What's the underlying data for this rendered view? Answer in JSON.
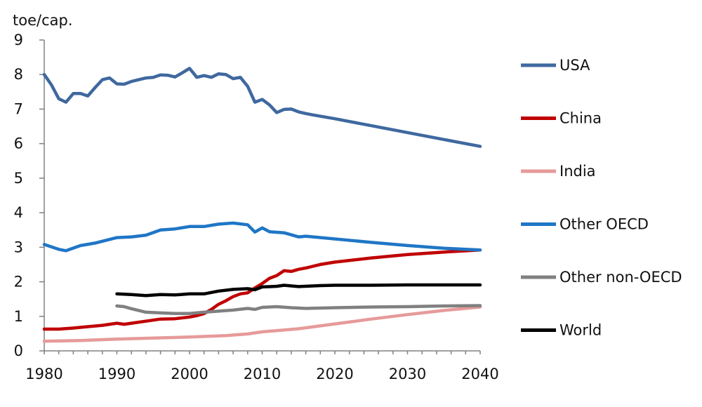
{
  "chart_data": {
    "type": "line",
    "y_unit_label": "toe/cap.",
    "xlim": [
      1980,
      2040
    ],
    "ylim": [
      0,
      9
    ],
    "x_ticks": [
      "1980",
      "1990",
      "2000",
      "2010",
      "2020",
      "2030",
      "2040"
    ],
    "y_ticks": [
      "0",
      "1",
      "2",
      "3",
      "4",
      "5",
      "6",
      "7",
      "8",
      "9"
    ],
    "grid": false,
    "legend_position": "right",
    "series": [
      {
        "name": "USA",
        "color": "#3f689f",
        "points": [
          [
            1980,
            8.0
          ],
          [
            1981,
            7.7
          ],
          [
            1982,
            7.3
          ],
          [
            1983,
            7.2
          ],
          [
            1984,
            7.45
          ],
          [
            1985,
            7.45
          ],
          [
            1986,
            7.38
          ],
          [
            1987,
            7.62
          ],
          [
            1988,
            7.85
          ],
          [
            1989,
            7.9
          ],
          [
            1990,
            7.73
          ],
          [
            1991,
            7.72
          ],
          [
            1992,
            7.8
          ],
          [
            1993,
            7.85
          ],
          [
            1994,
            7.9
          ],
          [
            1995,
            7.92
          ],
          [
            1996,
            7.99
          ],
          [
            1997,
            7.98
          ],
          [
            1998,
            7.93
          ],
          [
            1999,
            8.05
          ],
          [
            2000,
            8.18
          ],
          [
            2001,
            7.92
          ],
          [
            2002,
            7.97
          ],
          [
            2003,
            7.92
          ],
          [
            2004,
            8.02
          ],
          [
            2005,
            8.0
          ],
          [
            2006,
            7.88
          ],
          [
            2007,
            7.92
          ],
          [
            2008,
            7.66
          ],
          [
            2009,
            7.2
          ],
          [
            2010,
            7.28
          ],
          [
            2011,
            7.12
          ],
          [
            2012,
            6.9
          ],
          [
            2013,
            6.99
          ],
          [
            2014,
            7.0
          ],
          [
            2015,
            6.92
          ],
          [
            2016,
            6.87
          ],
          [
            2017,
            6.83
          ],
          [
            2020,
            6.72
          ],
          [
            2025,
            6.52
          ],
          [
            2030,
            6.32
          ],
          [
            2035,
            6.12
          ],
          [
            2040,
            5.92
          ]
        ]
      },
      {
        "name": "China",
        "color": "#c00000",
        "points": [
          [
            1980,
            0.63
          ],
          [
            1982,
            0.63
          ],
          [
            1984,
            0.66
          ],
          [
            1986,
            0.7
          ],
          [
            1988,
            0.74
          ],
          [
            1990,
            0.8
          ],
          [
            1991,
            0.77
          ],
          [
            1992,
            0.8
          ],
          [
            1994,
            0.86
          ],
          [
            1996,
            0.92
          ],
          [
            1998,
            0.93
          ],
          [
            2000,
            0.98
          ],
          [
            2001,
            1.02
          ],
          [
            2002,
            1.08
          ],
          [
            2003,
            1.2
          ],
          [
            2004,
            1.35
          ],
          [
            2005,
            1.45
          ],
          [
            2006,
            1.57
          ],
          [
            2007,
            1.65
          ],
          [
            2008,
            1.68
          ],
          [
            2009,
            1.82
          ],
          [
            2010,
            1.95
          ],
          [
            2011,
            2.1
          ],
          [
            2012,
            2.18
          ],
          [
            2013,
            2.32
          ],
          [
            2014,
            2.3
          ],
          [
            2015,
            2.36
          ],
          [
            2016,
            2.4
          ],
          [
            2018,
            2.5
          ],
          [
            2020,
            2.57
          ],
          [
            2025,
            2.69
          ],
          [
            2030,
            2.79
          ],
          [
            2035,
            2.86
          ],
          [
            2040,
            2.92
          ]
        ]
      },
      {
        "name": "India",
        "color": "#e79a9a",
        "points": [
          [
            1980,
            0.28
          ],
          [
            1985,
            0.3
          ],
          [
            1990,
            0.34
          ],
          [
            1995,
            0.37
          ],
          [
            2000,
            0.4
          ],
          [
            2005,
            0.44
          ],
          [
            2008,
            0.49
          ],
          [
            2010,
            0.55
          ],
          [
            2015,
            0.64
          ],
          [
            2020,
            0.78
          ],
          [
            2025,
            0.92
          ],
          [
            2030,
            1.05
          ],
          [
            2035,
            1.17
          ],
          [
            2040,
            1.27
          ]
        ]
      },
      {
        "name": "Other OECD",
        "color": "#1f76c6",
        "points": [
          [
            1980,
            3.08
          ],
          [
            1982,
            2.94
          ],
          [
            1983,
            2.9
          ],
          [
            1985,
            3.05
          ],
          [
            1987,
            3.12
          ],
          [
            1990,
            3.28
          ],
          [
            1992,
            3.3
          ],
          [
            1994,
            3.35
          ],
          [
            1996,
            3.5
          ],
          [
            1998,
            3.53
          ],
          [
            2000,
            3.6
          ],
          [
            2002,
            3.6
          ],
          [
            2004,
            3.67
          ],
          [
            2006,
            3.7
          ],
          [
            2008,
            3.65
          ],
          [
            2009,
            3.44
          ],
          [
            2010,
            3.56
          ],
          [
            2011,
            3.45
          ],
          [
            2013,
            3.42
          ],
          [
            2015,
            3.3
          ],
          [
            2016,
            3.32
          ],
          [
            2020,
            3.24
          ],
          [
            2025,
            3.14
          ],
          [
            2030,
            3.05
          ],
          [
            2035,
            2.97
          ],
          [
            2040,
            2.92
          ]
        ]
      },
      {
        "name": "Other non-OECD",
        "color": "#808080",
        "points": [
          [
            1990,
            1.3
          ],
          [
            1991,
            1.28
          ],
          [
            1992,
            1.22
          ],
          [
            1994,
            1.12
          ],
          [
            1996,
            1.1
          ],
          [
            1998,
            1.08
          ],
          [
            2000,
            1.08
          ],
          [
            2002,
            1.12
          ],
          [
            2004,
            1.15
          ],
          [
            2006,
            1.18
          ],
          [
            2008,
            1.23
          ],
          [
            2009,
            1.2
          ],
          [
            2010,
            1.26
          ],
          [
            2012,
            1.28
          ],
          [
            2014,
            1.25
          ],
          [
            2016,
            1.23
          ],
          [
            2020,
            1.25
          ],
          [
            2025,
            1.27
          ],
          [
            2030,
            1.28
          ],
          [
            2035,
            1.3
          ],
          [
            2040,
            1.31
          ]
        ]
      },
      {
        "name": "World",
        "color": "#000000",
        "points": [
          [
            1990,
            1.65
          ],
          [
            1992,
            1.63
          ],
          [
            1994,
            1.6
          ],
          [
            1996,
            1.63
          ],
          [
            1998,
            1.62
          ],
          [
            2000,
            1.65
          ],
          [
            2002,
            1.65
          ],
          [
            2004,
            1.73
          ],
          [
            2006,
            1.78
          ],
          [
            2008,
            1.8
          ],
          [
            2009,
            1.77
          ],
          [
            2010,
            1.85
          ],
          [
            2012,
            1.87
          ],
          [
            2013,
            1.9
          ],
          [
            2015,
            1.86
          ],
          [
            2018,
            1.89
          ],
          [
            2020,
            1.9
          ],
          [
            2025,
            1.9
          ],
          [
            2030,
            1.91
          ],
          [
            2035,
            1.91
          ],
          [
            2040,
            1.91
          ]
        ]
      }
    ]
  }
}
